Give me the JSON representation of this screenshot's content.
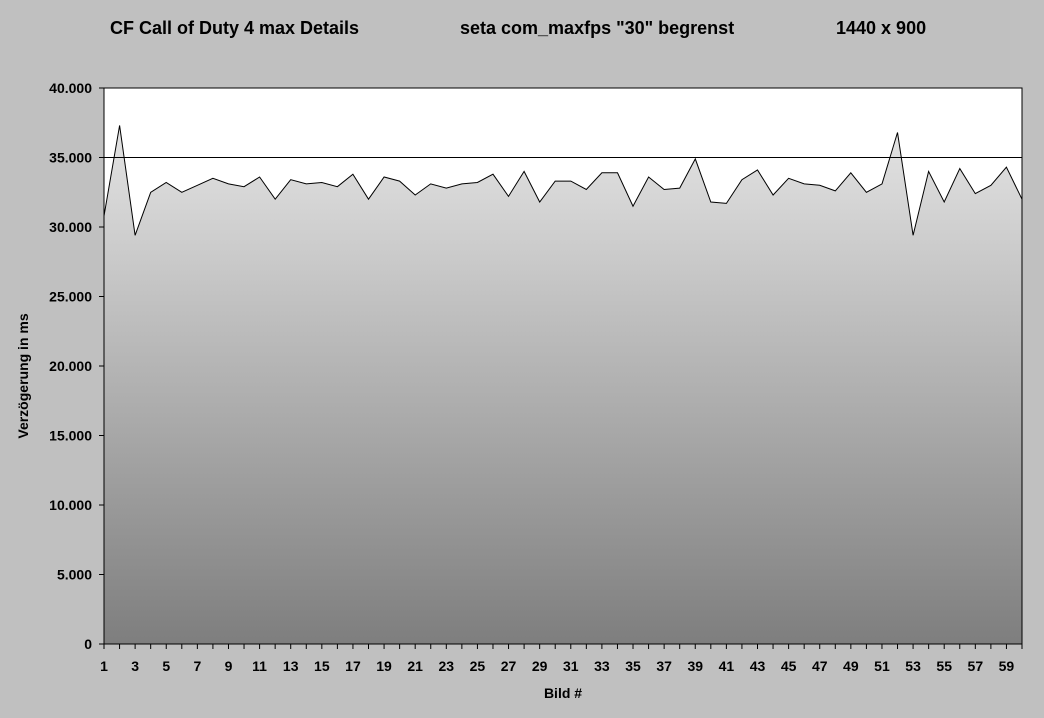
{
  "title": {
    "left": "CF Call of Duty 4  max Details",
    "middle": "seta com_maxfps \"30\" begrenst",
    "right": "1440 x 900"
  },
  "chart_data": {
    "type": "area",
    "title": "CF Call of Duty 4  max Details   seta com_maxfps \"30\" begrenst   1440 x 900",
    "xlabel": "Bild #",
    "ylabel": "Verzögerung in ms",
    "ylim": [
      0,
      40000
    ],
    "yticks": [
      0,
      5000,
      10000,
      15000,
      20000,
      25000,
      30000,
      35000,
      40000
    ],
    "ytick_labels": [
      "0",
      "5.000",
      "10.000",
      "15.000",
      "20.000",
      "25.000",
      "30.000",
      "35.000",
      "40.000"
    ],
    "xlim": [
      1,
      60
    ],
    "xtick_labels": [
      "1",
      "3",
      "5",
      "7",
      "9",
      "11",
      "13",
      "15",
      "17",
      "19",
      "21",
      "23",
      "25",
      "27",
      "29",
      "31",
      "33",
      "35",
      "37",
      "39",
      "41",
      "43",
      "45",
      "47",
      "49",
      "51",
      "53",
      "55",
      "57",
      "59"
    ],
    "reference_line": 35000,
    "grid": false,
    "x": [
      1,
      2,
      3,
      4,
      5,
      6,
      7,
      8,
      9,
      10,
      11,
      12,
      13,
      14,
      15,
      16,
      17,
      18,
      19,
      20,
      21,
      22,
      23,
      24,
      25,
      26,
      27,
      28,
      29,
      30,
      31,
      32,
      33,
      34,
      35,
      36,
      37,
      38,
      39,
      40,
      41,
      42,
      43,
      44,
      45,
      46,
      47,
      48,
      49,
      50,
      51,
      52,
      53,
      54,
      55,
      56,
      57,
      58,
      59,
      60
    ],
    "values": [
      30800,
      37300,
      29400,
      32500,
      33200,
      32500,
      33000,
      33500,
      33100,
      32900,
      33600,
      32000,
      33400,
      33100,
      33200,
      32900,
      33800,
      32000,
      33600,
      33300,
      32300,
      33100,
      32800,
      33100,
      33200,
      33800,
      32200,
      34000,
      31800,
      33300,
      33300,
      32700,
      33900,
      33900,
      31500,
      33600,
      32700,
      32800,
      34900,
      31800,
      31700,
      33400,
      34100,
      32300,
      33500,
      33100,
      33000,
      32600,
      33900,
      32500,
      33100,
      36800,
      29400,
      34000,
      31800,
      34200,
      32400,
      33000,
      34300,
      32000
    ],
    "colors": {
      "plot_background": "#ffffff",
      "area_top": "#e4e4e4",
      "area_bottom": "#7e7e7e",
      "line": "#000000",
      "page": "#c0c0c0"
    }
  }
}
